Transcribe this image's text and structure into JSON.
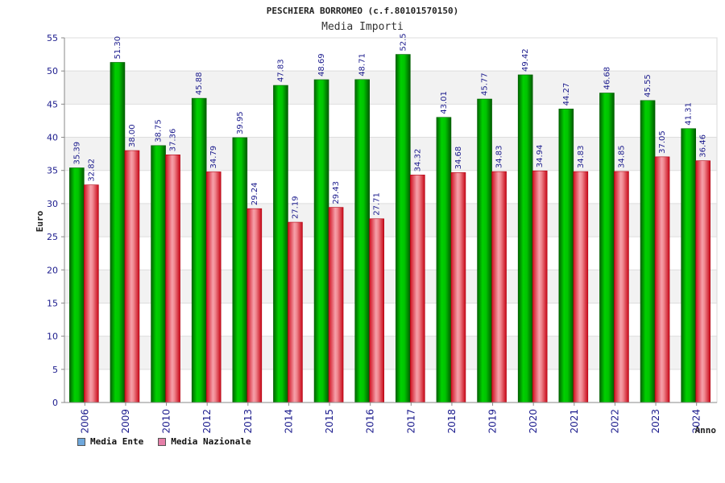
{
  "chart_data": {
    "type": "bar",
    "title": "PESCHIERA BORROMEO (c.f.80101570150)",
    "subtitle": "Media Importi",
    "xlabel": "Anno",
    "ylabel": "Euro",
    "ylim": [
      0,
      55
    ],
    "yticks": [
      "0",
      "5",
      "10",
      "15",
      "20",
      "25",
      "30",
      "35",
      "40",
      "45",
      "50",
      "55"
    ],
    "grid": true,
    "legend_position": "bottom-left",
    "categories": [
      "2006",
      "2009",
      "2010",
      "2012",
      "2013",
      "2014",
      "2015",
      "2016",
      "2017",
      "2018",
      "2019",
      "2020",
      "2021",
      "2022",
      "2023",
      "2024"
    ],
    "series": [
      {
        "name": "Media Ente",
        "color": "#00b000",
        "legend_color": "#6fa8dc",
        "values": [
          35.39,
          51.3,
          38.75,
          45.88,
          39.95,
          47.83,
          48.69,
          48.71,
          52.5,
          43.01,
          45.77,
          49.42,
          44.27,
          46.68,
          45.55,
          41.31
        ],
        "labels": [
          "35.39",
          "51.30",
          "38.75",
          "45.88",
          "39.95",
          "47.83",
          "48.69",
          "48.71",
          "52.5",
          "43.01",
          "45.77",
          "49.42",
          "44.27",
          "46.68",
          "45.55",
          "41.31"
        ]
      },
      {
        "name": "Media Nazionale",
        "color": "#e8283c",
        "legend_color": "#e57fa8",
        "values": [
          32.82,
          38.0,
          37.36,
          34.79,
          29.24,
          27.19,
          29.43,
          27.71,
          34.32,
          34.68,
          34.83,
          34.94,
          34.83,
          34.85,
          37.05,
          36.46
        ],
        "labels": [
          "32.82",
          "38.00",
          "37.36",
          "34.79",
          "29.24",
          "27.19",
          "29.43",
          "27.71",
          "34.32",
          "34.68",
          "34.83",
          "34.94",
          "34.83",
          "34.85",
          "37.05",
          "36.46"
        ]
      }
    ]
  }
}
